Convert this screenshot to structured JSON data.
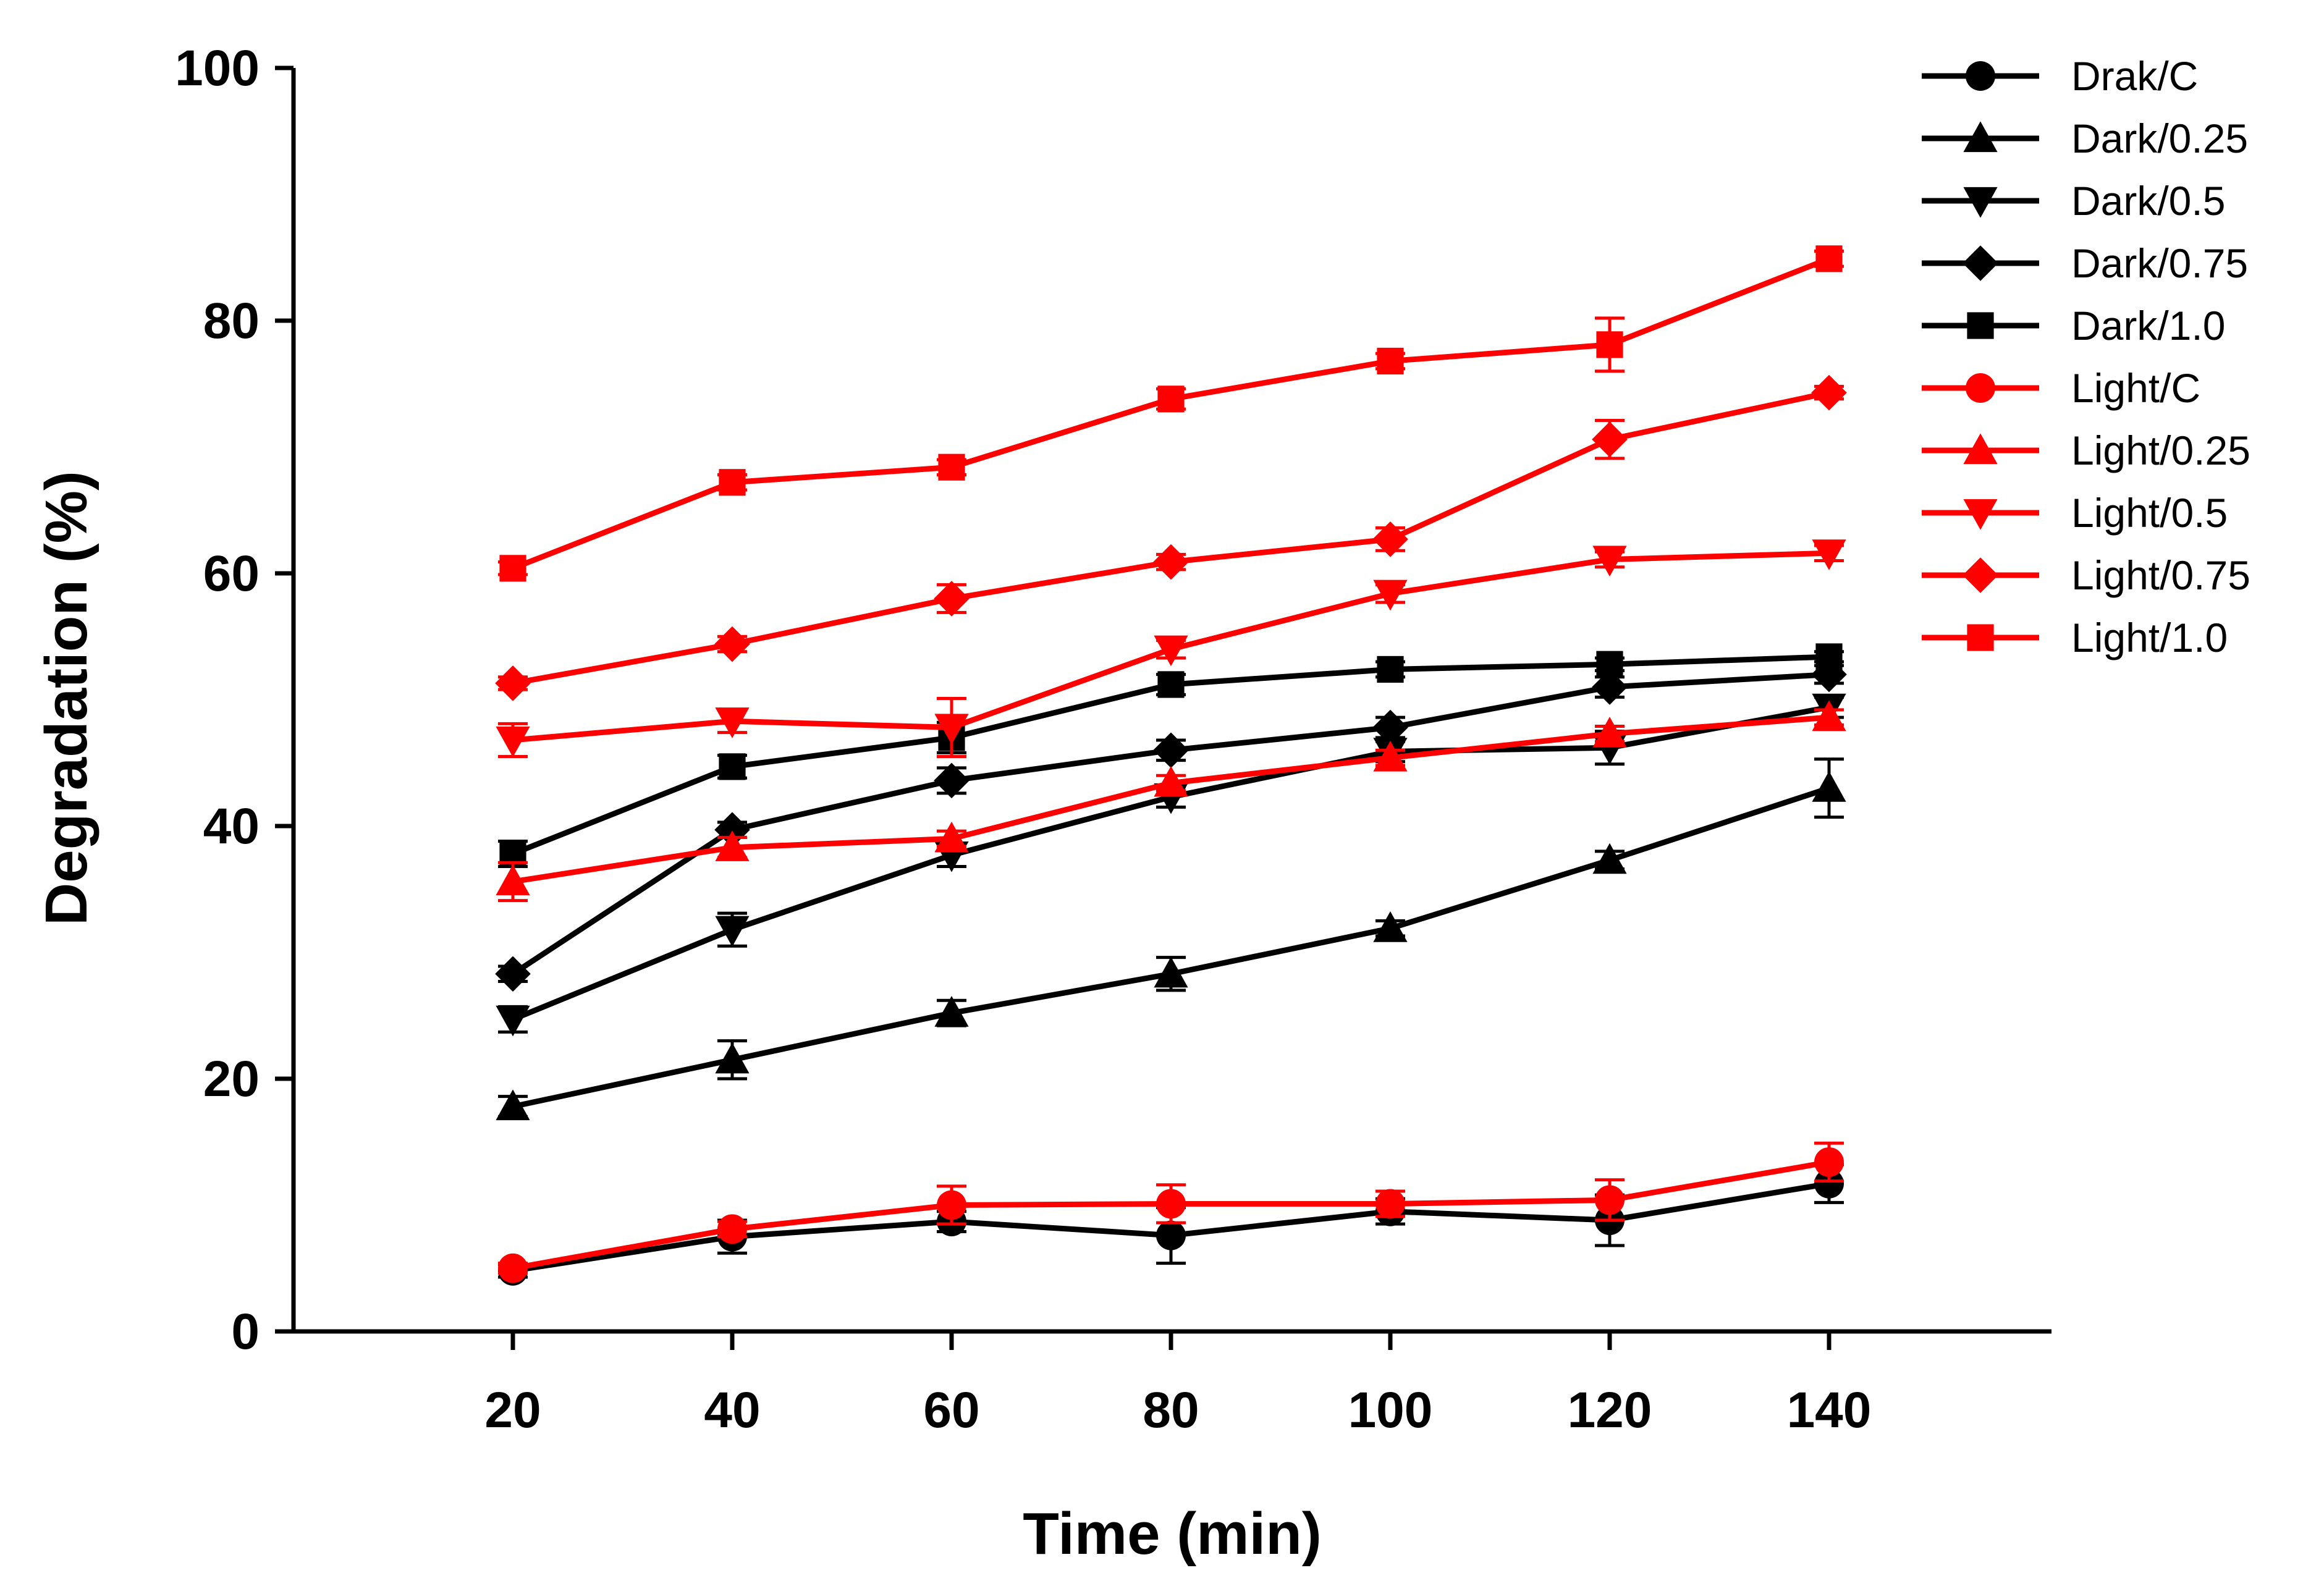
{
  "chart_data": {
    "type": "line",
    "title": "",
    "xlabel": "Time (min)",
    "ylabel": "Degradation (%)",
    "xlim": [
      0,
      160
    ],
    "ylim": [
      0,
      100
    ],
    "x": [
      20,
      40,
      60,
      80,
      100,
      120,
      140
    ],
    "xticks": [
      "20",
      "40",
      "60",
      "80",
      "100",
      "120",
      "140"
    ],
    "yticks": [
      "0",
      "20",
      "40",
      "60",
      "80",
      "100"
    ],
    "grid": false,
    "legend_position": "top-right",
    "series": [
      {
        "name": "Drak/C",
        "color": "#000000",
        "marker": "circle",
        "values": [
          4.8,
          7.5,
          8.7,
          7.6,
          9.5,
          8.8,
          11.7
        ],
        "errors": [
          0.5,
          1.3,
          0.8,
          2.2,
          1.0,
          2.0,
          1.5
        ]
      },
      {
        "name": "Dark/0.25",
        "color": "#000000",
        "marker": "triangle-up",
        "values": [
          17.8,
          21.5,
          25.2,
          28.3,
          31.9,
          37.3,
          43.0
        ],
        "errors": [
          0.8,
          1.5,
          1.0,
          1.3,
          0.6,
          0.7,
          2.3
        ]
      },
      {
        "name": "Dark/0.5",
        "color": "#000000",
        "marker": "triangle-down",
        "values": [
          24.7,
          31.8,
          37.7,
          42.3,
          45.9,
          46.2,
          49.4
        ],
        "errors": [
          1.0,
          1.3,
          0.9,
          0.8,
          0.8,
          1.3,
          0.8
        ]
      },
      {
        "name": "Dark/0.75",
        "color": "#000000",
        "marker": "diamond",
        "values": [
          28.3,
          39.7,
          43.6,
          46.0,
          47.8,
          51.0,
          52.0
        ],
        "errors": [
          0.6,
          0.6,
          1.0,
          0.8,
          0.8,
          0.8,
          0.7
        ]
      },
      {
        "name": "Dark/1.0",
        "color": "#000000",
        "marker": "square",
        "values": [
          37.8,
          44.7,
          47.0,
          51.2,
          52.4,
          52.8,
          53.4
        ],
        "errors": [
          1.0,
          0.9,
          1.2,
          0.8,
          0.6,
          0.5,
          0.4
        ]
      },
      {
        "name": "Light/C",
        "color": "#ff0000",
        "marker": "circle",
        "values": [
          5.0,
          8.1,
          10.0,
          10.1,
          10.1,
          10.4,
          13.4
        ],
        "errors": [
          0.4,
          0.6,
          1.5,
          1.5,
          1.0,
          1.6,
          1.5
        ]
      },
      {
        "name": "Light/0.25",
        "color": "#ff0000",
        "marker": "triangle-up",
        "values": [
          35.6,
          38.3,
          39.0,
          43.4,
          45.4,
          47.3,
          48.6
        ],
        "errors": [
          1.5,
          0.8,
          0.6,
          0.6,
          0.6,
          0.6,
          0.6
        ]
      },
      {
        "name": "Light/0.5",
        "color": "#ff0000",
        "marker": "triangle-down",
        "values": [
          46.8,
          48.3,
          47.8,
          54.0,
          58.4,
          61.1,
          61.6
        ],
        "errors": [
          1.3,
          0.9,
          2.3,
          0.7,
          0.7,
          0.6,
          0.6
        ]
      },
      {
        "name": "Light/0.75",
        "color": "#ff0000",
        "marker": "diamond",
        "values": [
          51.3,
          54.4,
          58.0,
          60.9,
          62.7,
          70.6,
          74.3
        ],
        "errors": [
          0.5,
          0.6,
          1.1,
          0.6,
          0.9,
          1.5,
          0.5
        ]
      },
      {
        "name": "Light/1.0",
        "color": "#ff0000",
        "marker": "square",
        "values": [
          60.4,
          67.2,
          68.4,
          73.8,
          76.8,
          78.1,
          84.9
        ],
        "errors": [
          0.5,
          0.6,
          0.6,
          0.8,
          0.6,
          2.1,
          0.6
        ]
      }
    ]
  }
}
